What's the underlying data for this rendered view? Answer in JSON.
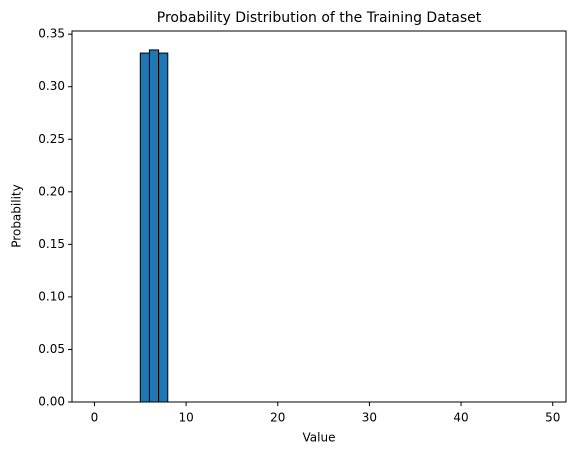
{
  "chart_data": {
    "type": "histogram",
    "title": "Probability Distribution of the Training Dataset",
    "x_label": "Value",
    "y_label": "Probability",
    "color": "#1f77b4",
    "edgecolor": "#000000",
    "bins": [
      0,
      1,
      2,
      3,
      4,
      5,
      6,
      7,
      8,
      9,
      10,
      11,
      12,
      13,
      14,
      15,
      16,
      17,
      18,
      19,
      20,
      21,
      22,
      23,
      24,
      25,
      26,
      27,
      28,
      29,
      30,
      31,
      32,
      33,
      34,
      35,
      36,
      37,
      38,
      39,
      40,
      41,
      42,
      43,
      44,
      45,
      46,
      47,
      48,
      49
    ],
    "values": [
      0,
      0,
      0,
      0,
      0,
      0.332,
      0.335,
      0.332,
      0,
      0,
      0,
      0,
      0,
      0,
      0,
      0,
      0,
      0,
      0,
      0,
      0,
      0,
      0,
      0,
      0,
      0,
      0,
      0,
      0,
      0,
      0,
      0,
      0,
      0,
      0,
      0,
      0,
      0,
      0,
      0,
      0,
      0,
      0,
      0,
      0,
      0,
      0,
      0,
      0
    ],
    "xlim": [
      -2.45,
      51.45
    ],
    "ylim": [
      0,
      0.353
    ],
    "xticks": [
      0,
      10,
      20,
      30,
      40,
      50
    ],
    "yticks": [
      {
        "value": 0,
        "label": "0.00"
      },
      {
        "value": 0.05,
        "label": "0.05"
      },
      {
        "value": 0.1,
        "label": "0.10"
      },
      {
        "value": 0.15,
        "label": "0.15"
      },
      {
        "value": 0.2,
        "label": "0.20"
      },
      {
        "value": 0.25,
        "label": "0.25"
      },
      {
        "value": 0.3,
        "label": "0.30"
      },
      {
        "value": 0.35,
        "label": "0.35"
      }
    ]
  }
}
